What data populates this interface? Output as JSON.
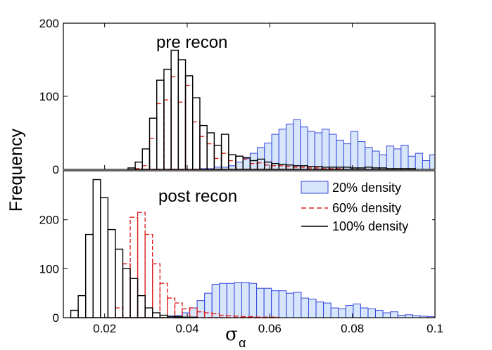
{
  "chart_data": [
    {
      "type": "bar",
      "panel": "top",
      "label": "pre recon",
      "ylim": [
        0,
        200
      ],
      "yticks": [
        "0",
        "100",
        "200"
      ],
      "xlim": [
        0.01,
        0.1
      ],
      "series": [
        {
          "name": "20% density",
          "color": "#3344dd",
          "fill": "#d7e6fb",
          "style": "filled-step",
          "bin_start": 0.01,
          "bin_width": 0.00174,
          "values": [
            0,
            0,
            0,
            0,
            0,
            0,
            0,
            0,
            0,
            0,
            0,
            0,
            0,
            0,
            0,
            0,
            0,
            0,
            0,
            1,
            1,
            3,
            3,
            5,
            10,
            15,
            22,
            30,
            36,
            48,
            55,
            62,
            68,
            58,
            52,
            50,
            55,
            48,
            40,
            35,
            52,
            38,
            30,
            25,
            20,
            32,
            28,
            33,
            18,
            22,
            12,
            20,
            10,
            15,
            8,
            12,
            10,
            6,
            8,
            5,
            4,
            3,
            3,
            5,
            3,
            4,
            3,
            2,
            2,
            30
          ]
        },
        {
          "name": "60% density",
          "color": "#dd2222",
          "style": "dashed-step",
          "bin_start": 0.01,
          "bin_width": 0.00174,
          "values": [
            0,
            0,
            0,
            0,
            0,
            0,
            0,
            0,
            0,
            0,
            1,
            5,
            42,
            90,
            95,
            127,
            92,
            115,
            65,
            45,
            35,
            15,
            22,
            12,
            18,
            14,
            8,
            9,
            6,
            5,
            5,
            4,
            3,
            3,
            2,
            2,
            1,
            1,
            1,
            0,
            0,
            0,
            0,
            0,
            0,
            0,
            0,
            0,
            0,
            0,
            0,
            0,
            0,
            0,
            0,
            0,
            0,
            0,
            0,
            0,
            0,
            0,
            0,
            0,
            0,
            0,
            0,
            0,
            0,
            0
          ]
        },
        {
          "name": "100% density",
          "color": "#000000",
          "style": "step",
          "bin_start": 0.01,
          "bin_width": 0.00174,
          "values": [
            0,
            0,
            0,
            0,
            0,
            0,
            0,
            0,
            0,
            2,
            10,
            28,
            70,
            122,
            137,
            163,
            150,
            128,
            98,
            60,
            50,
            33,
            48,
            20,
            18,
            16,
            12,
            14,
            10,
            8,
            7,
            6,
            5,
            5,
            4,
            4,
            3,
            3,
            3,
            3,
            2,
            2,
            3,
            2,
            2,
            1,
            1,
            1,
            1,
            0,
            0,
            0,
            0,
            0,
            0,
            0,
            0,
            0,
            0,
            0,
            0,
            0,
            0,
            0,
            0,
            0,
            0,
            0,
            0,
            0
          ]
        }
      ]
    },
    {
      "type": "bar",
      "panel": "bottom",
      "label": "post recon",
      "ylim": [
        0,
        300
      ],
      "yticks": [
        "0",
        "100",
        "200"
      ],
      "xlim": [
        0.01,
        0.1
      ],
      "xticks": [
        "0.02",
        "0.04",
        "0.06",
        "0.08",
        "0.1"
      ],
      "xlabel": "σ",
      "xlabel_sub": "α",
      "ylabel": "Frequency",
      "series": [
        {
          "name": "20% density",
          "color": "#3344dd",
          "fill": "#d7e6fb",
          "style": "filled-step",
          "bin_start": 0.01,
          "bin_width": 0.0018,
          "values": [
            0,
            0,
            0,
            0,
            0,
            0,
            0,
            0,
            0,
            0,
            0,
            0,
            0,
            0,
            2,
            5,
            10,
            20,
            35,
            50,
            68,
            70,
            70,
            72,
            72,
            70,
            60,
            60,
            55,
            55,
            50,
            52,
            40,
            38,
            32,
            30,
            20,
            18,
            25,
            28,
            20,
            18,
            15,
            10,
            12,
            5,
            6,
            4,
            3,
            2,
            2,
            2,
            3,
            2,
            2,
            1,
            2,
            2,
            2,
            3,
            1,
            1,
            1,
            0,
            0,
            0,
            0,
            0,
            0,
            15
          ]
        },
        {
          "name": "60% density",
          "color": "#dd2222",
          "style": "dashed-step",
          "bin_start": 0.01,
          "bin_width": 0.0018,
          "values": [
            0,
            0,
            0,
            0,
            0,
            0,
            0,
            20,
            110,
            205,
            215,
            170,
            110,
            70,
            40,
            30,
            18,
            20,
            12,
            10,
            8,
            5,
            4,
            3,
            2,
            2,
            1,
            1,
            1,
            0,
            0,
            0,
            0,
            0,
            0,
            0,
            0,
            0,
            0,
            0,
            0,
            0,
            0,
            0,
            0,
            0,
            0,
            0,
            0,
            0,
            0,
            0,
            0,
            0,
            0,
            0,
            0,
            0,
            0,
            0,
            0,
            0,
            0,
            0,
            0,
            0,
            0,
            0,
            0,
            0
          ]
        },
        {
          "name": "100% density",
          "color": "#000000",
          "style": "step",
          "bin_start": 0.01,
          "bin_width": 0.0018,
          "values": [
            0,
            15,
            45,
            170,
            282,
            245,
            180,
            140,
            100,
            80,
            45,
            20,
            10,
            5,
            3,
            2,
            1,
            1,
            0,
            0,
            0,
            0,
            0,
            0,
            0,
            0,
            0,
            0,
            0,
            0,
            0,
            0,
            0,
            0,
            0,
            0,
            0,
            0,
            0,
            0,
            0,
            0,
            0,
            0,
            0,
            0,
            0,
            0,
            0,
            0,
            0,
            0,
            0,
            0,
            0,
            0,
            0,
            0,
            0,
            0,
            0,
            0,
            0,
            0,
            0,
            0,
            0,
            0,
            0,
            0
          ]
        }
      ]
    }
  ],
  "legend": {
    "placement": "top-right of bottom panel",
    "entries": [
      "20% density",
      "60% density",
      "100% density"
    ]
  }
}
